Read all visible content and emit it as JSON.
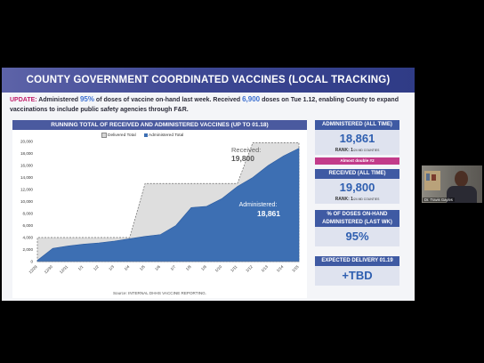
{
  "slide": {
    "title": "COUNTY GOVERNMENT COORDINATED VACCINES (LOCAL TRACKING)",
    "update": {
      "label": "UPDATE:",
      "t1": " Administered ",
      "pct": "95%",
      "t2": " of doses of vaccine on-hand last week.  Received ",
      "doses": "6,900",
      "t3": " doses on Tue 1.12, enabling County to expand vaccinations to include public safety agencies through F&R."
    },
    "chart_title": "RUNNING TOTAL OF RECEIVED AND ADMINISTERED VACCINES (UP TO 01.18)",
    "source": "Source: INTERNAL DHHS VACCINE REPORTING."
  },
  "stats": {
    "administered_header": "ADMINISTERED (ALL TIME)",
    "administered_value": "18,861",
    "administered_rank_label": "RANK: ",
    "administered_rank": "1",
    "administered_rank_suffix": "/24 MD COUNTIES",
    "badge": "Almost double #2",
    "received_header": "RECEIVED (ALL TIME)",
    "received_value": "19,800",
    "received_rank_label": "RANK: ",
    "received_rank": "1",
    "received_rank_suffix": "/24 MD COUNTIES",
    "pct_header": "% OF DOSES ON-HAND ADMINISTERED (LAST WK)",
    "pct_value": "95%",
    "expected_header": "EXPECTED DELIVERY 01.19",
    "expected_value": "+TBD"
  },
  "webcam": {
    "name": "Dr. Travis Gayles"
  },
  "chart_data": {
    "type": "area",
    "title": "RUNNING TOTAL OF RECEIVED AND ADMINISTERED VACCINES (UP TO 01.18)",
    "x": [
      "12/29",
      "12/30",
      "12/31",
      "1/1",
      "1/2",
      "1/3",
      "1/4",
      "1/5",
      "1/6",
      "1/7",
      "1/8",
      "1/9",
      "1/10",
      "1/11",
      "1/12",
      "1/13",
      "1/14",
      "1/15"
    ],
    "ylim": [
      0,
      20000
    ],
    "yticks": [
      "0",
      "2,000",
      "4,000",
      "6,000",
      "8,000",
      "10,000",
      "12,000",
      "14,000",
      "16,000",
      "18,000",
      "20,000"
    ],
    "yticks_values": [
      0,
      2000,
      4000,
      6000,
      8000,
      10000,
      12000,
      14000,
      16000,
      18000,
      20000
    ],
    "grid": false,
    "legend_position": "top",
    "series": [
      {
        "name": "Delivered Total",
        "color": "#d3d3d3",
        "values": [
          4000,
          4000,
          4000,
          4000,
          4000,
          4000,
          4000,
          13000,
          13000,
          13000,
          13000,
          13000,
          13000,
          13000,
          19800,
          19800,
          19800,
          19800
        ]
      },
      {
        "name": "Administered Total",
        "color": "#3d6fb3",
        "values": [
          200,
          2200,
          2600,
          2900,
          3100,
          3400,
          3800,
          4200,
          4500,
          6000,
          9000,
          9200,
          10500,
          12500,
          14000,
          16000,
          17600,
          18861
        ]
      }
    ],
    "annotations": [
      {
        "label": "Received:",
        "value": "19,800"
      },
      {
        "label": "Administered:",
        "value": "18,861"
      }
    ]
  }
}
